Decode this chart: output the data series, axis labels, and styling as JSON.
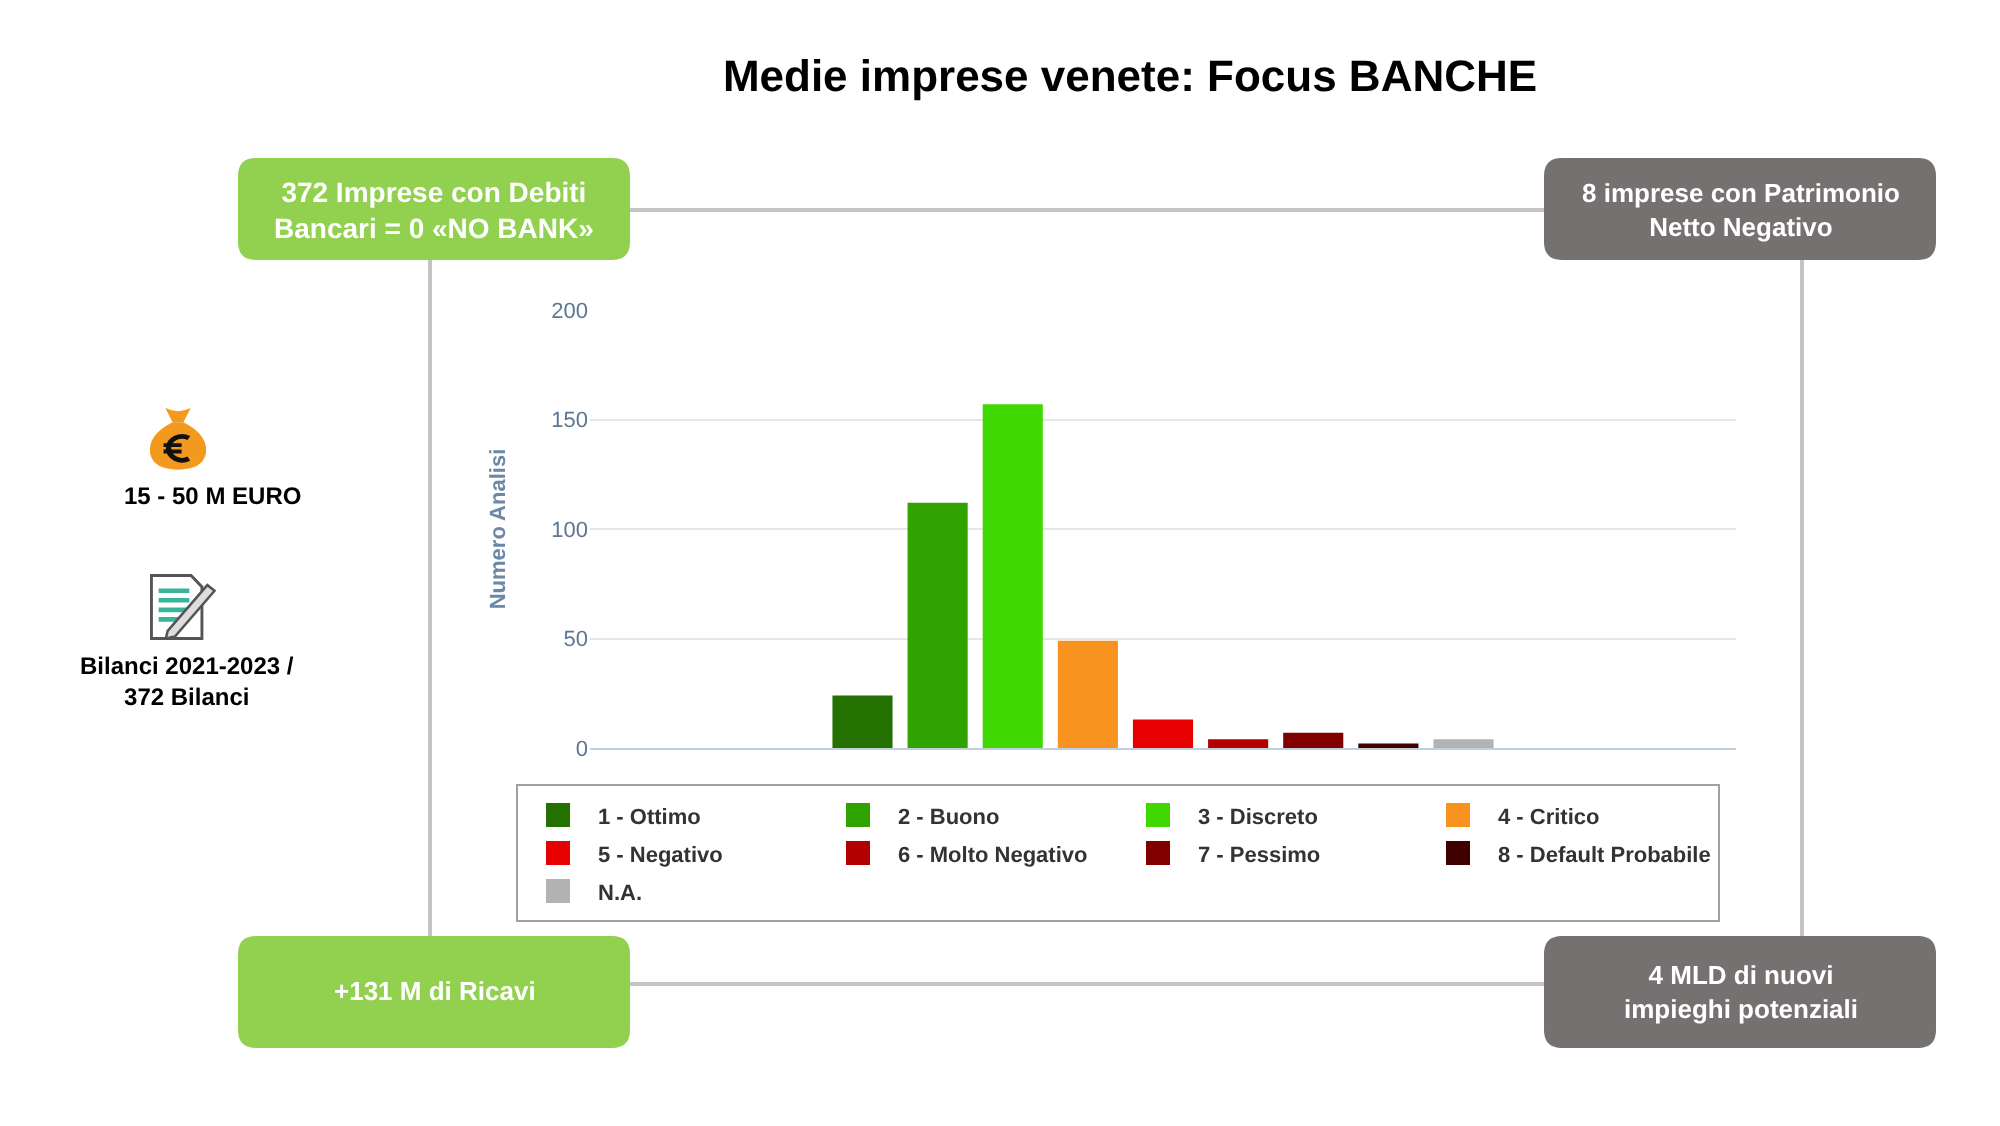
{
  "chart_data": {
    "type": "bar",
    "title": "Medie imprese venete: Focus BANCHE",
    "ylabel": "Numero Analisi",
    "categories": [
      null
    ],
    "series": [
      {
        "name": "1 - Ottimo",
        "color": "#247000",
        "values": [
          24
        ]
      },
      {
        "name": "2 - Buono",
        "color": "#30a300",
        "values": [
          112
        ]
      },
      {
        "name": "3 - Discreto",
        "color": "#3fd800",
        "values": [
          157
        ]
      },
      {
        "name": "4 - Critico",
        "color": "#f7931e",
        "values": [
          49
        ]
      },
      {
        "name": "5 - Negativo",
        "color": "#e60000",
        "values": [
          13
        ]
      },
      {
        "name": "6 - Molto Negativo",
        "color": "#b30000",
        "values": [
          4
        ]
      },
      {
        "name": "7 - Pessimo",
        "color": "#800000",
        "values": [
          7
        ]
      },
      {
        "name": "8 - Default Probabile",
        "color": "#400000",
        "values": [
          2
        ]
      },
      {
        "name": "N.A.",
        "color": "#b3b3b3",
        "values": [
          4
        ]
      }
    ],
    "ylim": [
      0,
      200
    ],
    "yticks": [
      0,
      50,
      100,
      150,
      200
    ],
    "grid": "y",
    "legend": "bottom",
    "annotations": [
      "372 Imprese con Debiti\nBancari = 0 «NO BANK»",
      "8 imprese con Patrimonio\nNetto Negativo",
      "+131 M di Ricavi",
      "4 MLD di nuovi\nimpieghi potenziali",
      "15 - 50 M EURO",
      "Bilanci 2021-2023 /\n372 Bilanci"
    ]
  }
}
